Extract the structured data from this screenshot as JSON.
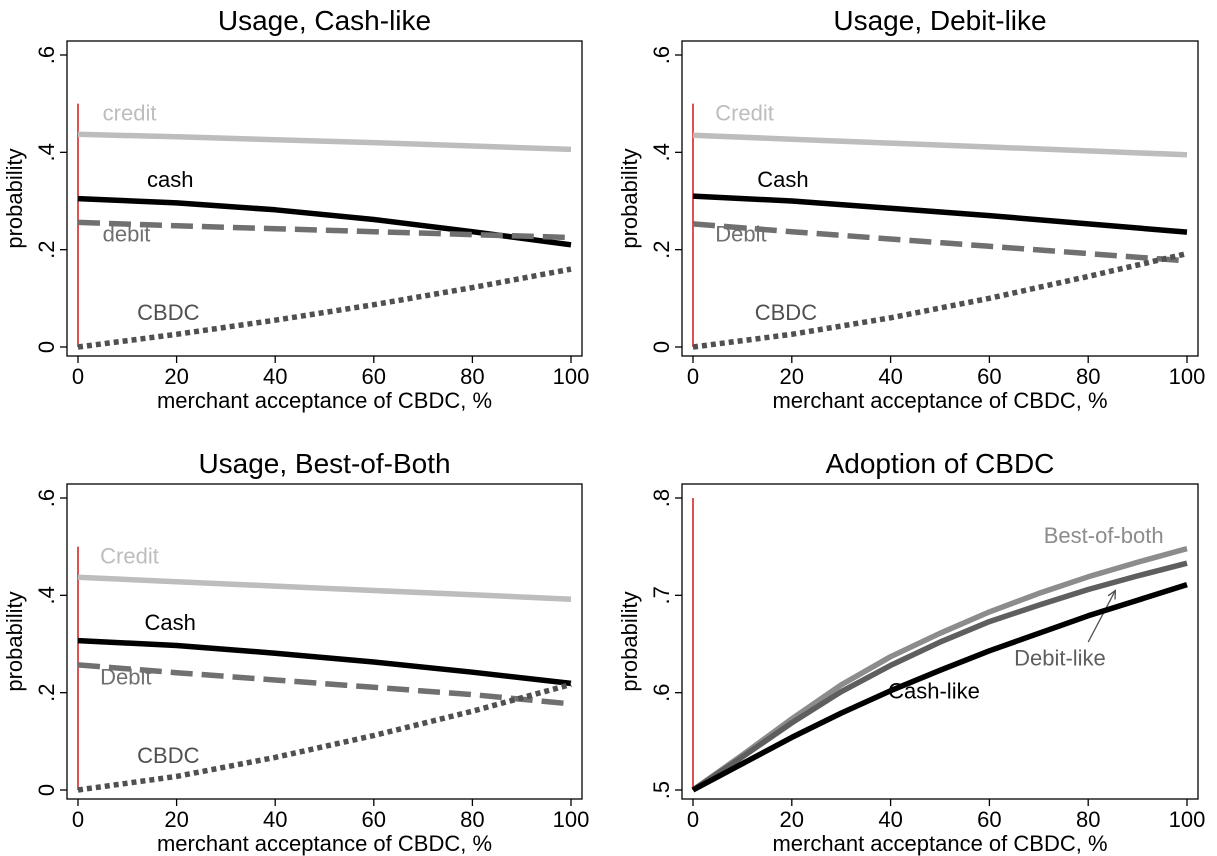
{
  "chart_data": [
    {
      "type": "line",
      "title": "Usage, Cash-like",
      "xlabel": "merchant acceptance of CBDC, %",
      "ylabel": "probability",
      "xlim": [
        0,
        100
      ],
      "ylim": [
        0,
        0.6
      ],
      "xticks": [
        0,
        20,
        40,
        60,
        80,
        100
      ],
      "xtick_labels": [
        "0",
        "20",
        "40",
        "60",
        "80",
        "100"
      ],
      "yticks": [
        0,
        0.2,
        0.4,
        0.6
      ],
      "ytick_labels": [
        "0",
        ".2",
        ".4",
        ".6"
      ],
      "vline": {
        "x": 0,
        "y_from": 0,
        "y_to": 0.5,
        "color": "#d62728"
      },
      "grid": false,
      "series": [
        {
          "label": "credit",
          "color": "#bdbdbd",
          "style": "solid",
          "label_x": 5,
          "label_y": 0.465,
          "x": [
            0,
            20,
            40,
            60,
            80,
            100
          ],
          "y": [
            0.437,
            0.432,
            0.426,
            0.42,
            0.413,
            0.406
          ]
        },
        {
          "label": "cash",
          "color": "#000000",
          "style": "solid",
          "label_x": 14,
          "label_y": 0.329,
          "x": [
            0,
            20,
            40,
            60,
            80,
            100
          ],
          "y": [
            0.305,
            0.296,
            0.282,
            0.262,
            0.237,
            0.21
          ]
        },
        {
          "label": "debit",
          "color": "#707070",
          "style": "dashed",
          "label_x": 5,
          "label_y": 0.217,
          "x": [
            0,
            20,
            40,
            60,
            80,
            100
          ],
          "y": [
            0.256,
            0.249,
            0.243,
            0.237,
            0.231,
            0.225
          ]
        },
        {
          "label": "CBDC",
          "color": "#505050",
          "style": "dotted",
          "label_x": 12,
          "label_y": 0.055,
          "x": [
            0,
            20,
            40,
            60,
            80,
            100
          ],
          "y": [
            0.0,
            0.026,
            0.055,
            0.087,
            0.122,
            0.16
          ]
        }
      ]
    },
    {
      "type": "line",
      "title": "Usage, Debit-like",
      "xlabel": "merchant acceptance of CBDC, %",
      "ylabel": "probability",
      "xlim": [
        0,
        100
      ],
      "ylim": [
        0,
        0.6
      ],
      "xticks": [
        0,
        20,
        40,
        60,
        80,
        100
      ],
      "xtick_labels": [
        "0",
        "20",
        "40",
        "60",
        "80",
        "100"
      ],
      "yticks": [
        0,
        0.2,
        0.4,
        0.6
      ],
      "ytick_labels": [
        "0",
        ".2",
        ".4",
        ".6"
      ],
      "vline": {
        "x": 0,
        "y_from": 0,
        "y_to": 0.5,
        "color": "#d62728"
      },
      "grid": false,
      "series": [
        {
          "label": "Credit",
          "color": "#bdbdbd",
          "style": "solid",
          "label_x": 4.5,
          "label_y": 0.465,
          "x": [
            0,
            20,
            40,
            60,
            80,
            100
          ],
          "y": [
            0.435,
            0.427,
            0.419,
            0.411,
            0.403,
            0.395
          ]
        },
        {
          "label": "Cash",
          "color": "#000000",
          "style": "solid",
          "label_x": 13,
          "label_y": 0.329,
          "x": [
            0,
            20,
            40,
            60,
            80,
            100
          ],
          "y": [
            0.31,
            0.3,
            0.285,
            0.27,
            0.253,
            0.236
          ]
        },
        {
          "label": "Debit",
          "color": "#707070",
          "style": "dashed",
          "label_x": 4.5,
          "label_y": 0.217,
          "x": [
            0,
            20,
            40,
            60,
            80,
            100
          ],
          "y": [
            0.253,
            0.237,
            0.222,
            0.207,
            0.192,
            0.177
          ]
        },
        {
          "label": "CBDC",
          "color": "#505050",
          "style": "dotted",
          "label_x": 12.5,
          "label_y": 0.055,
          "x": [
            0,
            20,
            40,
            60,
            80,
            100
          ],
          "y": [
            0.0,
            0.026,
            0.06,
            0.1,
            0.145,
            0.192
          ]
        }
      ]
    },
    {
      "type": "line",
      "title": "Usage, Best-of-Both",
      "xlabel": "merchant acceptance of CBDC, %",
      "ylabel": "probability",
      "xlim": [
        0,
        100
      ],
      "ylim": [
        0,
        0.6
      ],
      "xticks": [
        0,
        20,
        40,
        60,
        80,
        100
      ],
      "xtick_labels": [
        "0",
        "20",
        "40",
        "60",
        "80",
        "100"
      ],
      "yticks": [
        0,
        0.2,
        0.4,
        0.6
      ],
      "ytick_labels": [
        "0",
        ".2",
        ".4",
        ".6"
      ],
      "vline": {
        "x": 0,
        "y_from": 0,
        "y_to": 0.5,
        "color": "#d62728"
      },
      "grid": false,
      "series": [
        {
          "label": "Credit",
          "color": "#bdbdbd",
          "style": "solid",
          "label_x": 4.5,
          "label_y": 0.465,
          "x": [
            0,
            20,
            40,
            60,
            80,
            100
          ],
          "y": [
            0.437,
            0.428,
            0.419,
            0.41,
            0.401,
            0.392
          ]
        },
        {
          "label": "Cash",
          "color": "#000000",
          "style": "solid",
          "label_x": 13.5,
          "label_y": 0.329,
          "x": [
            0,
            20,
            40,
            60,
            80,
            100
          ],
          "y": [
            0.307,
            0.297,
            0.281,
            0.263,
            0.242,
            0.219
          ]
        },
        {
          "label": "Debit",
          "color": "#707070",
          "style": "dashed",
          "label_x": 4.5,
          "label_y": 0.217,
          "x": [
            0,
            20,
            40,
            60,
            80,
            100
          ],
          "y": [
            0.257,
            0.241,
            0.226,
            0.211,
            0.196,
            0.177
          ]
        },
        {
          "label": "CBDC",
          "color": "#505050",
          "style": "dotted",
          "label_x": 12,
          "label_y": 0.055,
          "x": [
            0,
            20,
            40,
            60,
            80,
            100
          ],
          "y": [
            0.0,
            0.028,
            0.067,
            0.112,
            0.162,
            0.217
          ]
        }
      ]
    },
    {
      "type": "line",
      "title": "Adoption of CBDC",
      "xlabel": "merchant acceptance of CBDC, %",
      "ylabel": "probability",
      "xlim": [
        0,
        100
      ],
      "ylim": [
        0.5,
        0.8
      ],
      "xticks": [
        0,
        20,
        40,
        60,
        80,
        100
      ],
      "xtick_labels": [
        "0",
        "20",
        "40",
        "60",
        "80",
        "100"
      ],
      "yticks": [
        0.5,
        0.6,
        0.7,
        0.8
      ],
      "ytick_labels": [
        ".5",
        ".6",
        ".7",
        ".8"
      ],
      "vline": {
        "x": 0,
        "y_from": 0.5,
        "y_to": 0.8,
        "color": "#d62728"
      },
      "grid": false,
      "series": [
        {
          "label": "Best-of-both",
          "color": "#8c8c8c",
          "style": "solid",
          "label_x": 71,
          "label_y": 0.754,
          "x": [
            0,
            10,
            20,
            30,
            40,
            50,
            60,
            70,
            80,
            90,
            100
          ],
          "y": [
            0.5,
            0.536,
            0.573,
            0.608,
            0.637,
            0.661,
            0.683,
            0.702,
            0.719,
            0.734,
            0.748
          ]
        },
        {
          "label": "Debit-like",
          "color": "#5e5e5e",
          "style": "solid",
          "label_x": 65,
          "label_y": 0.628,
          "arrow": {
            "from_x": 80,
            "from_y": 0.652,
            "to_x": 85.5,
            "to_y": 0.705
          },
          "x": [
            0,
            10,
            20,
            30,
            40,
            50,
            60,
            70,
            80,
            90,
            100
          ],
          "y": [
            0.5,
            0.534,
            0.569,
            0.601,
            0.628,
            0.652,
            0.673,
            0.69,
            0.706,
            0.72,
            0.733
          ]
        },
        {
          "label": "Cash-like",
          "color": "#000000",
          "style": "solid",
          "label_x": 39.5,
          "label_y": 0.594,
          "x": [
            0,
            10,
            20,
            30,
            40,
            50,
            60,
            70,
            80,
            90,
            100
          ],
          "y": [
            0.5,
            0.527,
            0.554,
            0.579,
            0.602,
            0.623,
            0.643,
            0.661,
            0.679,
            0.695,
            0.711
          ]
        }
      ]
    }
  ]
}
